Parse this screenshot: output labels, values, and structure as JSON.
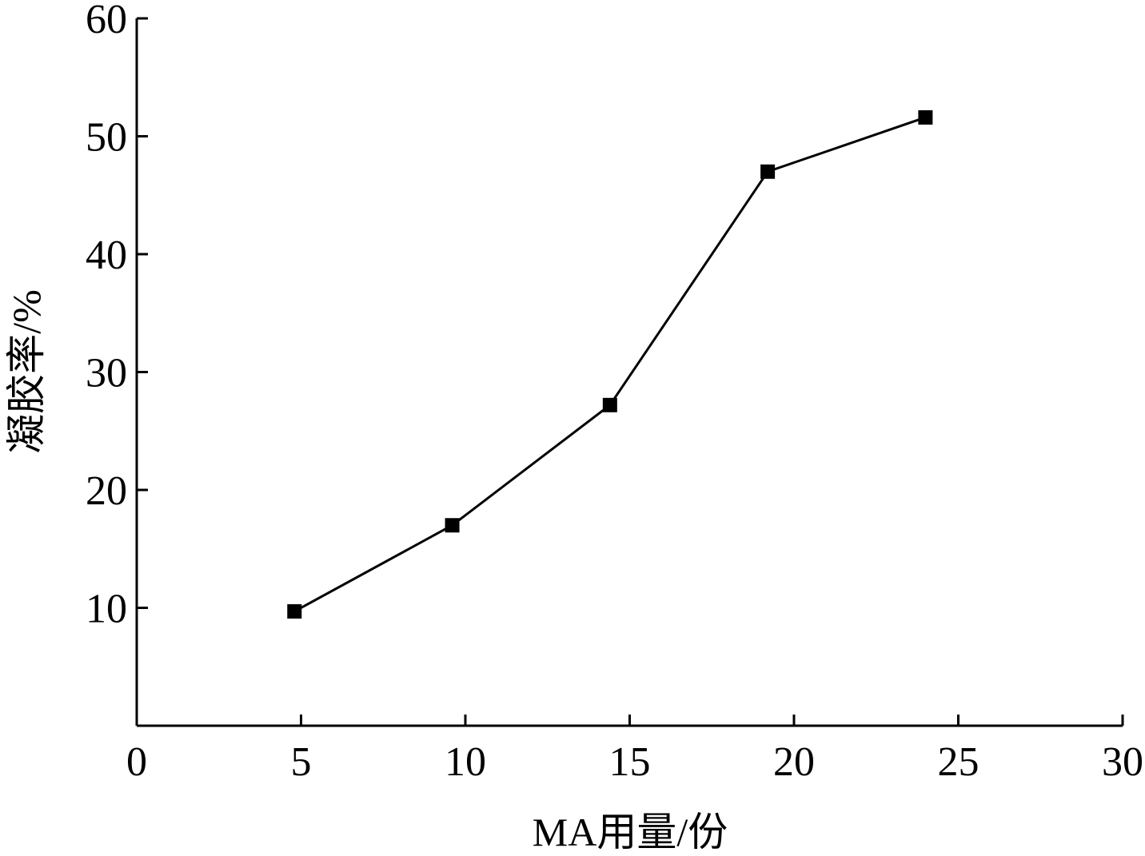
{
  "chart_data": {
    "type": "line",
    "title": "",
    "xlabel": "MA用量/份",
    "ylabel": "凝胶率/%",
    "xlim": [
      0,
      30
    ],
    "ylim": [
      0,
      60
    ],
    "x_ticks": [
      "0",
      "5",
      "10",
      "15",
      "20",
      "25",
      "30"
    ],
    "y_ticks": [
      "10",
      "20",
      "30",
      "40",
      "50",
      "60"
    ],
    "grid": false,
    "legend": "none",
    "marker": "square",
    "line_color": "#000000",
    "series": [
      {
        "x": [
          4.8,
          9.6,
          14.4,
          19.2,
          24.0
        ],
        "y": [
          9.7,
          17.0,
          27.2,
          47.0,
          51.6
        ]
      }
    ]
  }
}
